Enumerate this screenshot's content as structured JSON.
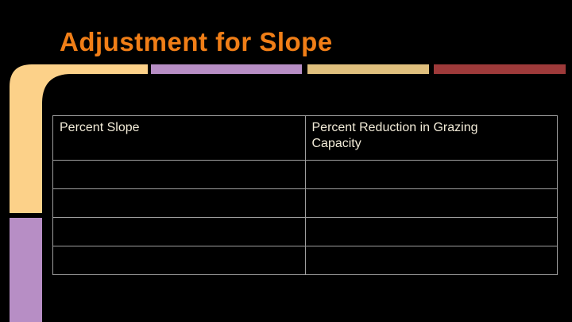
{
  "slide": {
    "title": "Adjustment for Slope"
  },
  "table": {
    "headers": [
      "Percent Slope",
      "Percent Reduction in Grazing Capacity"
    ],
    "rows": [
      [
        "",
        ""
      ],
      [
        "",
        ""
      ],
      [
        "",
        ""
      ],
      [
        "",
        ""
      ]
    ]
  },
  "colors": {
    "background": "#000000",
    "title": "#F07E17",
    "accent_yellow": "#FCD189",
    "accent_purple": "#B78EC5",
    "accent_tan": "#DFBF7D",
    "accent_dark_red": "#9E3A3A",
    "table_border": "#9E9E9E",
    "table_text": "#F2EBD8"
  }
}
